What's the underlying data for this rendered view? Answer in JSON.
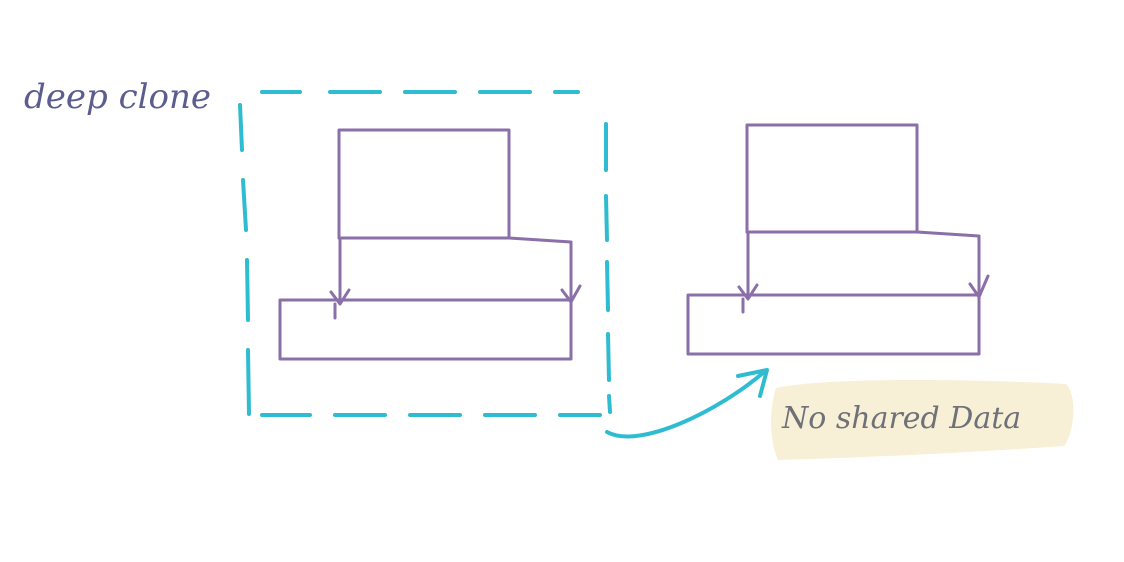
{
  "title": "deep clone",
  "note": "No shared Data",
  "colors": {
    "ink": "#5b5d8f",
    "shape": "#8a6fa8",
    "dashed": "#2fbcd0",
    "highlight": "#f7f0d6",
    "note_ink": "#6f7078"
  }
}
